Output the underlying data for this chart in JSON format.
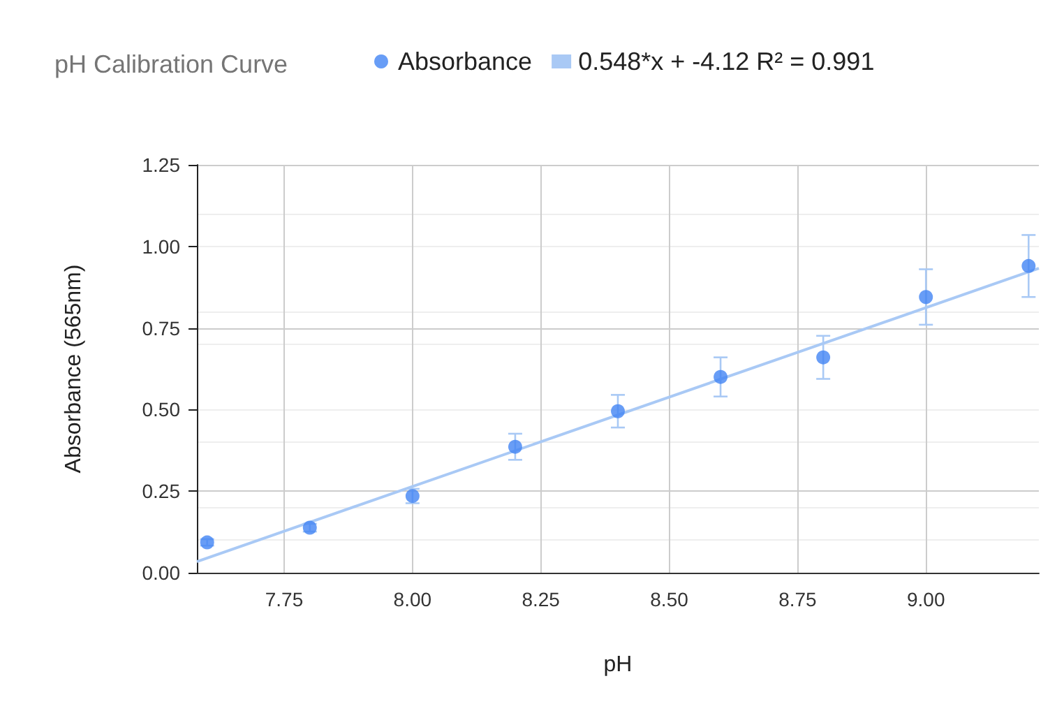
{
  "chart_data": {
    "type": "scatter",
    "title": "pH Calibration Curve",
    "xlabel": "pH",
    "ylabel": "Absorbance (565nm)",
    "x": [
      7.6,
      7.8,
      8.0,
      8.2,
      8.4,
      8.6,
      8.8,
      9.0,
      9.2
    ],
    "series": [
      {
        "name": "Absorbance",
        "color": "#4285f4",
        "marker": "circle",
        "values": [
          0.093,
          0.138,
          0.235,
          0.386,
          0.495,
          0.6,
          0.66,
          0.845,
          0.94
        ],
        "errors": [
          0.01,
          0.012,
          0.022,
          0.04,
          0.05,
          0.06,
          0.066,
          0.085,
          0.095
        ]
      },
      {
        "name": "0.548*x + -4.12 R² = 0.991",
        "type": "line",
        "marker": "none",
        "color": "#a9c9f5",
        "x": [
          7.58,
          9.22
        ],
        "values": [
          0.034,
          0.933
        ]
      }
    ],
    "xlim": [
      7.58,
      9.22
    ],
    "xticks": [
      7.75,
      {
        "value": 8,
        "label": "8.00"
      },
      8.25,
      {
        "value": 8.5,
        "label": "8.50"
      },
      8.75,
      {
        "value": 9,
        "label": "9.00"
      }
    ],
    "ylim": [
      0,
      1.25
    ],
    "yticks": [
      {
        "value": 0,
        "label": "0.00"
      },
      0.25,
      {
        "value": 0.5,
        "label": "0.50"
      },
      0.75,
      {
        "value": 1,
        "label": "1.00"
      },
      1.25
    ],
    "grid": true,
    "legend": "top"
  }
}
